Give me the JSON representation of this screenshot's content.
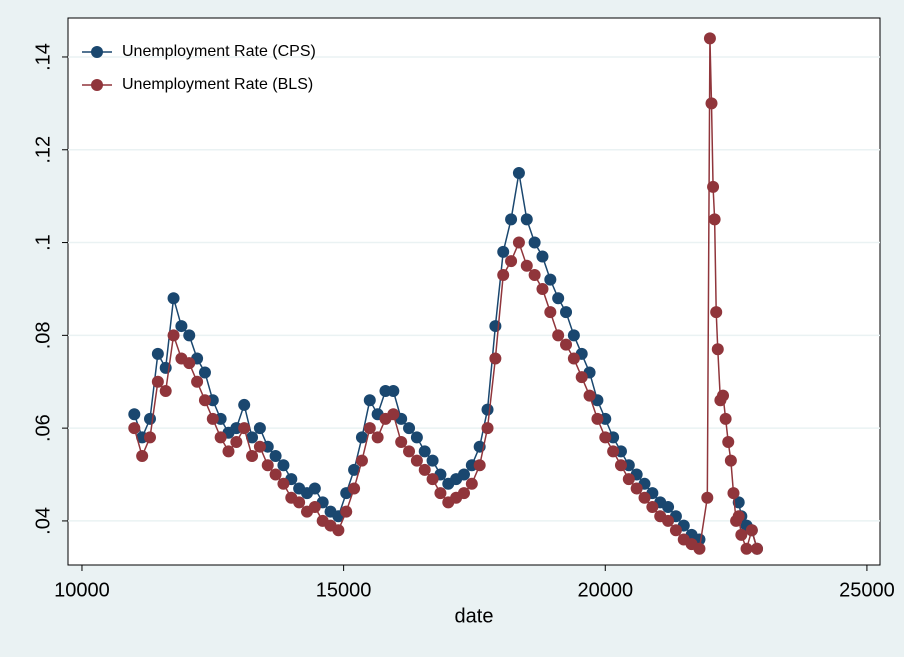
{
  "chart_data": {
    "type": "scatter-line",
    "x_label": "date",
    "x": [
      11000,
      11150,
      11300,
      11450,
      11600,
      11750,
      11900,
      12050,
      12200,
      12350,
      12500,
      12650,
      12800,
      12950,
      13100,
      13250,
      13400,
      13550,
      13700,
      13850,
      14000,
      14150,
      14300,
      14450,
      14600,
      14750,
      14900,
      15050,
      15200,
      15350,
      15500,
      15650,
      15800,
      15950,
      16100,
      16250,
      16400,
      16550,
      16700,
      16850,
      17000,
      17150,
      17300,
      17450,
      17600,
      17750,
      17900,
      18050,
      18200,
      18350,
      18500,
      18650,
      18800,
      18950,
      19100,
      19250,
      19400,
      19550,
      19700,
      19850,
      20000,
      20150,
      20300,
      20450,
      20600,
      20750,
      20900,
      21050,
      21200,
      21350,
      21500,
      21650,
      21800,
      21950,
      22000,
      22030,
      22060,
      22090,
      22120,
      22150,
      22200,
      22250,
      22300,
      22350,
      22400,
      22450,
      22500,
      22550,
      22600,
      22700,
      22800,
      22900
    ],
    "series": [
      {
        "name": "Unemployment Rate (CPS)",
        "color": "#1a476f",
        "values": [
          0.063,
          0.058,
          0.062,
          0.076,
          0.073,
          0.088,
          0.082,
          0.08,
          0.075,
          0.072,
          0.066,
          0.062,
          0.059,
          0.06,
          0.065,
          0.058,
          0.06,
          0.056,
          0.054,
          0.052,
          0.049,
          0.047,
          0.046,
          0.047,
          0.044,
          0.042,
          0.041,
          0.046,
          0.051,
          0.058,
          0.066,
          0.063,
          0.068,
          0.068,
          0.062,
          0.06,
          0.058,
          0.055,
          0.053,
          0.05,
          0.048,
          0.049,
          0.05,
          0.052,
          0.056,
          0.064,
          0.082,
          0.098,
          0.105,
          0.115,
          0.105,
          0.1,
          0.097,
          0.092,
          0.088,
          0.085,
          0.08,
          0.076,
          0.072,
          0.066,
          0.062,
          0.058,
          0.055,
          0.052,
          0.05,
          0.048,
          0.046,
          0.044,
          0.043,
          0.041,
          0.039,
          0.037,
          0.036,
          null,
          null,
          null,
          null,
          null,
          null,
          null,
          null,
          null,
          null,
          null,
          null,
          null,
          null,
          0.044,
          0.041,
          0.039,
          0.038,
          0.034
        ]
      },
      {
        "name": "Unemployment Rate (BLS)",
        "color": "#90353b",
        "values": [
          0.06,
          0.054,
          0.058,
          0.07,
          0.068,
          0.08,
          0.075,
          0.074,
          0.07,
          0.066,
          0.062,
          0.058,
          0.055,
          0.057,
          0.06,
          0.054,
          0.056,
          0.052,
          0.05,
          0.048,
          0.045,
          0.044,
          0.042,
          0.043,
          0.04,
          0.039,
          0.038,
          0.042,
          0.047,
          0.053,
          0.06,
          0.058,
          0.062,
          0.063,
          0.057,
          0.055,
          0.053,
          0.051,
          0.049,
          0.046,
          0.044,
          0.045,
          0.046,
          0.048,
          0.052,
          0.06,
          0.075,
          0.093,
          0.096,
          0.1,
          0.095,
          0.093,
          0.09,
          0.085,
          0.08,
          0.078,
          0.075,
          0.071,
          0.067,
          0.062,
          0.058,
          0.055,
          0.052,
          0.049,
          0.047,
          0.045,
          0.043,
          0.041,
          0.04,
          0.038,
          0.036,
          0.035,
          0.034,
          0.045,
          0.144,
          0.13,
          0.112,
          0.105,
          0.085,
          0.077,
          0.066,
          0.067,
          0.062,
          0.057,
          0.053,
          0.046,
          0.04,
          0.041,
          0.037,
          0.034,
          0.038,
          0.034
        ]
      }
    ],
    "xlim": [
      9733,
      25250
    ],
    "ylim": [
      0.0305,
      0.1484
    ],
    "xticks": [
      10000,
      15000,
      20000,
      25000
    ],
    "yticks": [
      {
        "value": 0.04,
        "label": ".04"
      },
      {
        "value": 0.06,
        "label": ".06"
      },
      {
        "value": 0.08,
        "label": ".08"
      },
      {
        "value": 0.1,
        "label": ".1"
      },
      {
        "value": 0.12,
        "label": ".12"
      },
      {
        "value": 0.14,
        "label": ".14"
      }
    ],
    "grid": true,
    "legend": "top-left"
  }
}
